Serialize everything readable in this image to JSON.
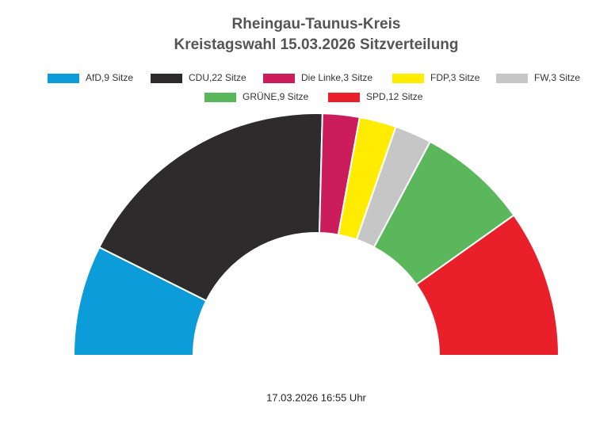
{
  "chart_data": {
    "type": "semicircle-donut",
    "title": "Rheingau-Taunus-Kreis",
    "subtitle": "Kreistagswahl 15.03.2026 Sitzverteilung",
    "categories": [
      "AfD,9 Sitze",
      "CDU,22 Sitze",
      "Die Linke,3 Sitze",
      "FDP,3 Sitze",
      "FW,3 Sitze",
      "GRÜNE,9 Sitze",
      "SPD,12 Sitze"
    ],
    "values": [
      9,
      22,
      3,
      3,
      3,
      9,
      12
    ],
    "colors": [
      "#0c9cda",
      "#2d2b2c",
      "#cb1d5b",
      "#ffec00",
      "#c6c6c6",
      "#5bb75b",
      "#e91f29"
    ],
    "footer": "17.03.2026 16:55 Uhr"
  }
}
